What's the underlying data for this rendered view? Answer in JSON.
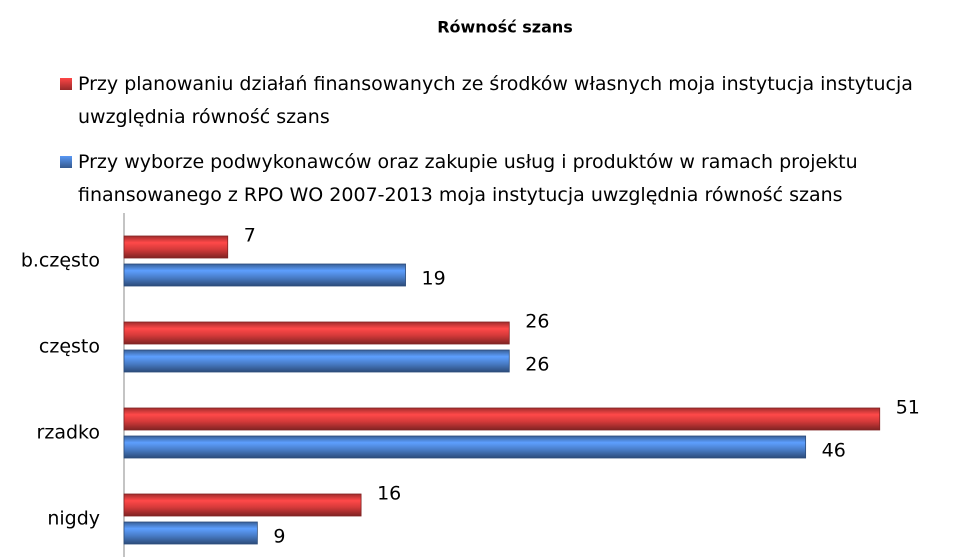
{
  "chart_data": {
    "type": "hbar",
    "title": "Równość szans",
    "categories": [
      "b.często",
      "często",
      "rzadko",
      "nigdy"
    ],
    "series": [
      {
        "name": "Przy planowaniu działań finansowanych ze środków własnych moja instytucja instytucja uwzględnia równość szans",
        "color": "#d63a3a",
        "values": [
          7,
          26,
          51,
          16
        ]
      },
      {
        "name": "Przy wyborze podwykonawców oraz zakupie usług i produktów w ramach projektu finansowanego z RPO WO 2007-2013 moja instytucja uwzględnia równość szans",
        "color": "#4a7fcb",
        "values": [
          19,
          26,
          46,
          9
        ]
      }
    ],
    "xlim": [
      0,
      55
    ],
    "legend": "top"
  }
}
